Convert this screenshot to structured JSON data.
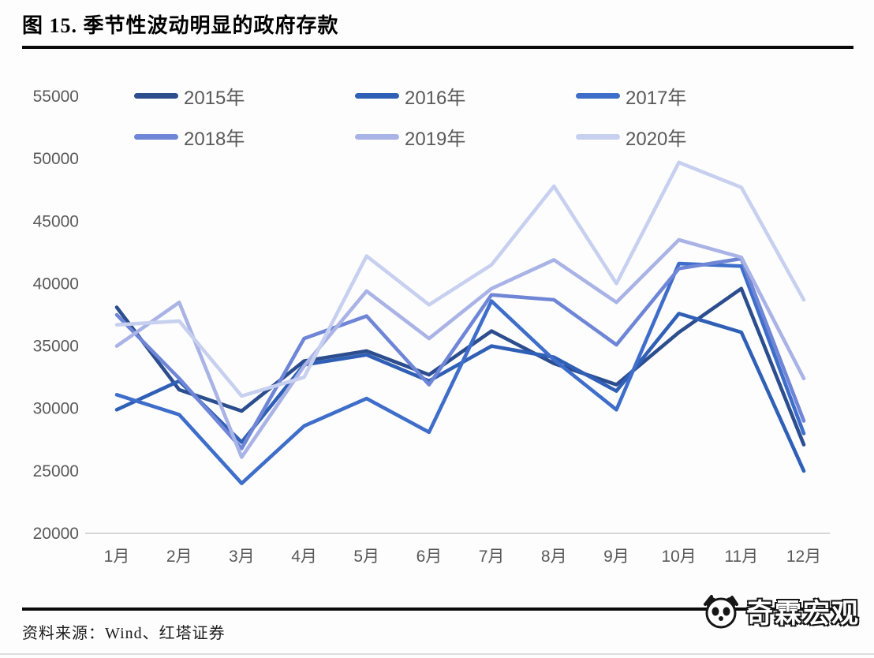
{
  "figure": {
    "title": "图 15. 季节性波动明显的政府存款",
    "source": "资料来源：Wind、红塔证券",
    "logo_text": "奇霖宏观"
  },
  "chart_data": {
    "type": "line",
    "title": "",
    "xlabel": "",
    "ylabel": "",
    "categories": [
      "1月",
      "2月",
      "3月",
      "4月",
      "5月",
      "6月",
      "7月",
      "8月",
      "9月",
      "10月",
      "11月",
      "12月"
    ],
    "series": [
      {
        "name": "2015年",
        "color": "#2c4d8e",
        "values": [
          38100,
          31500,
          29800,
          33800,
          34600,
          32700,
          36200,
          33600,
          31900,
          36100,
          39600,
          27100
        ]
      },
      {
        "name": "2016年",
        "color": "#3060b6",
        "values": [
          29900,
          32200,
          27300,
          33500,
          34300,
          32200,
          35000,
          34100,
          31400,
          37600,
          36100,
          25000
        ]
      },
      {
        "name": "2017年",
        "color": "#3e6ec9",
        "values": [
          31100,
          29500,
          24000,
          28600,
          30800,
          28100,
          38600,
          33900,
          29900,
          41600,
          41400,
          28000
        ]
      },
      {
        "name": "2018年",
        "color": "#6f86d7",
        "values": [
          37500,
          32400,
          26800,
          35600,
          37400,
          31900,
          39100,
          38700,
          35100,
          41200,
          42000,
          29000
        ]
      },
      {
        "name": "2019年",
        "color": "#a9b3e6",
        "values": [
          35000,
          38500,
          26100,
          33400,
          39400,
          35600,
          39600,
          41900,
          38500,
          43500,
          42100,
          32400
        ]
      },
      {
        "name": "2020年",
        "color": "#c7d0ef",
        "values": [
          36700,
          37000,
          31000,
          32500,
          42200,
          38300,
          41500,
          47800,
          40000,
          49700,
          47700,
          38700
        ]
      }
    ],
    "ylim": [
      20000,
      55000
    ],
    "yticks": [
      20000,
      25000,
      30000,
      35000,
      40000,
      45000,
      50000,
      55000
    ],
    "grid": false,
    "legend_position": "top",
    "axis_color": "#c9c9c9",
    "tick_label_color": "#595959"
  }
}
